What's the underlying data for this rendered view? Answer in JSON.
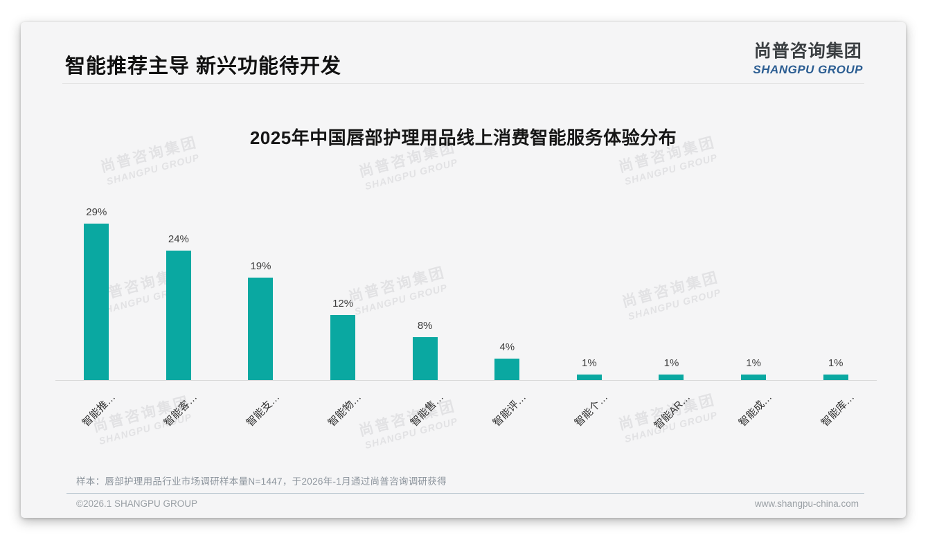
{
  "header": {
    "title": "智能推荐主导 新兴功能待开发",
    "logo_cn": "尚普咨询集团",
    "logo_en": "SHANGPU GROUP"
  },
  "watermark": {
    "line1": "尚普咨询集团",
    "line2": "SHANGPU GROUP"
  },
  "chart_data": {
    "type": "bar",
    "title": "2025年中国唇部护理用品线上消费智能服务体验分布",
    "categories": [
      "智能推…",
      "智能客…",
      "智能支…",
      "智能物…",
      "智能售…",
      "智能评…",
      "智能个…",
      "智能AR…",
      "智能成…",
      "智能库…"
    ],
    "values": [
      29,
      24,
      19,
      12,
      8,
      4,
      1,
      1,
      1,
      1
    ],
    "value_labels": [
      "29%",
      "24%",
      "19%",
      "12%",
      "8%",
      "4%",
      "1%",
      "1%",
      "1%",
      "1%"
    ],
    "unit": "%",
    "ylim": [
      0,
      32
    ],
    "grid": false,
    "legend": false,
    "x_label_rotation": -45,
    "bar_color": "#0AA8A1"
  },
  "colors": {
    "accent_teal": "#0AA8A1",
    "logo_blue": "#2B5D92",
    "slide_bg": "#F5F5F6",
    "axis_line": "#D9D9D9"
  },
  "footnote": {
    "sample": "样本：唇部护理用品行业市场调研样本量N=1447，于2026年-1月通过尚普咨询调研获得"
  },
  "footer": {
    "copyright": "©2026.1 SHANGPU GROUP",
    "website": "www.shangpu-china.com"
  }
}
